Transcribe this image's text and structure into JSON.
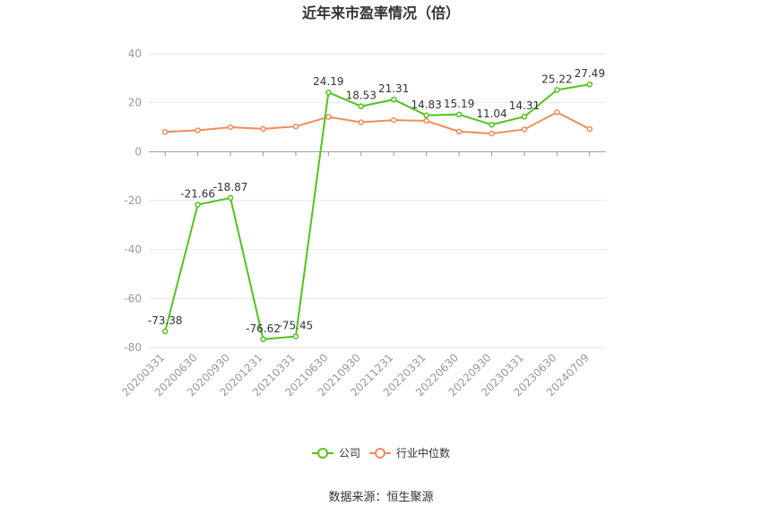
{
  "chart_data": {
    "type": "line",
    "title": "近年来市盈率情况（倍）",
    "categories": [
      "20200331",
      "20200630",
      "20200930",
      "20201231",
      "20210331",
      "20210630",
      "20210930",
      "20211231",
      "20220331",
      "20220630",
      "20220930",
      "20230331",
      "20230630",
      "20240709"
    ],
    "ylim": [
      -80,
      40
    ],
    "yticks": [
      40,
      20,
      0,
      -20,
      -40,
      -60,
      -80
    ],
    "grid": true,
    "legend_position": "bottom",
    "series": [
      {
        "name": "公司",
        "color": "#52c41a",
        "values": [
          -73.38,
          -21.66,
          -18.87,
          -76.62,
          -75.45,
          24.19,
          18.53,
          21.31,
          14.83,
          15.19,
          11.04,
          14.31,
          25.22,
          27.49
        ],
        "labels": [
          "-73.38",
          "-21.66",
          "-18.87",
          "-76.62",
          "-75.45",
          "24.19",
          "18.53",
          "21.31",
          "14.83",
          "15.19",
          "11.04",
          "14.31",
          "25.22",
          "27.49"
        ]
      },
      {
        "name": "行业中位数",
        "color": "#f08c5a",
        "values": [
          8.1,
          8.7,
          10.0,
          9.3,
          10.3,
          14.2,
          12.0,
          12.9,
          12.6,
          8.2,
          7.4,
          9.1,
          16.1,
          9.2
        ]
      }
    ],
    "source": "数据来源：恒生聚源"
  }
}
